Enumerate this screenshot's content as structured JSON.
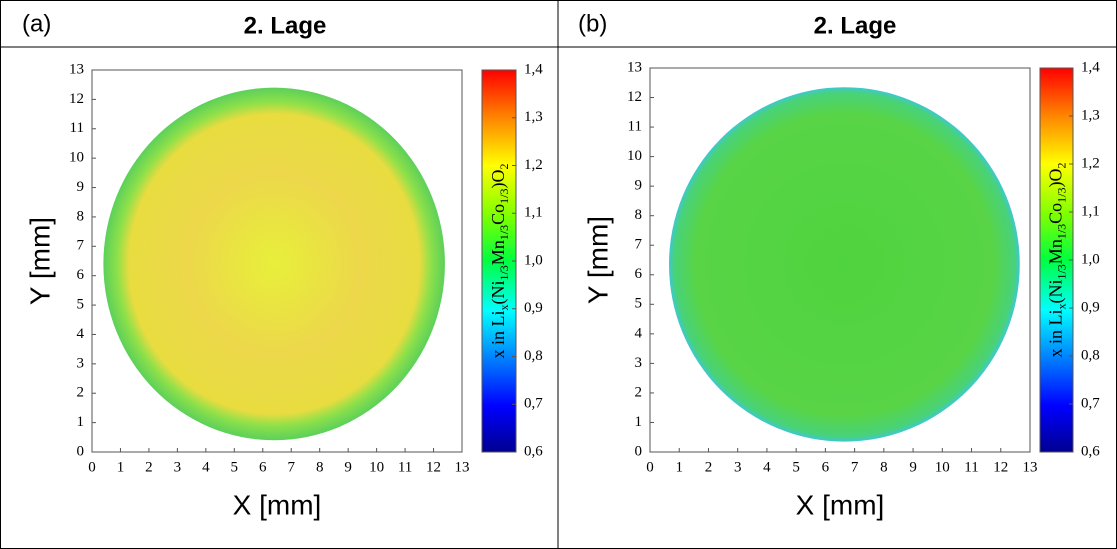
{
  "chart_data": [
    {
      "type": "heatmap",
      "panel_label": "(a)",
      "title": "2. Lage",
      "xlabel": "X [mm]",
      "ylabel": "Y [mm]",
      "xlim": [
        0,
        13
      ],
      "ylim": [
        0,
        13
      ],
      "xticks": [
        0,
        1,
        2,
        3,
        4,
        5,
        6,
        7,
        8,
        9,
        10,
        11,
        12,
        13
      ],
      "yticks": [
        0,
        1,
        2,
        3,
        4,
        5,
        6,
        7,
        8,
        9,
        10,
        11,
        12,
        13
      ],
      "clim": [
        0.6,
        1.4
      ],
      "cticks": [
        {
          "value": 0.6,
          "label": "0,6"
        },
        {
          "value": 0.7,
          "label": "0,7"
        },
        {
          "value": 0.8,
          "label": "0,8"
        },
        {
          "value": 0.9,
          "label": "0,9"
        },
        {
          "value": 1.0,
          "label": "1,0"
        },
        {
          "value": 1.1,
          "label": "1,1"
        },
        {
          "value": 1.2,
          "label": "1,2"
        },
        {
          "value": 1.3,
          "label": "1,3"
        },
        {
          "value": 1.4,
          "label": "1,4"
        }
      ],
      "colorbar_label": [
        "x in Li",
        "x",
        "(Ni",
        "1/3",
        "Mn",
        "1/3",
        "Co",
        "1/3",
        ")O",
        "2"
      ]
    },
    {
      "type": "heatmap",
      "panel_label": "(b)",
      "title": "2. Lage",
      "xlabel": "X [mm]",
      "ylabel": "Y [mm]",
      "xlim": [
        0,
        13
      ],
      "ylim": [
        0,
        13
      ],
      "xticks": [
        0,
        1,
        2,
        3,
        4,
        5,
        6,
        7,
        8,
        9,
        10,
        11,
        12,
        13
      ],
      "yticks": [
        0,
        1,
        2,
        3,
        4,
        5,
        6,
        7,
        8,
        9,
        10,
        11,
        12,
        13
      ],
      "clim": [
        0.6,
        1.4
      ],
      "cticks": [
        {
          "value": 0.6,
          "label": "0,6"
        },
        {
          "value": 0.7,
          "label": "0,7"
        },
        {
          "value": 0.8,
          "label": "0,8"
        },
        {
          "value": 0.9,
          "label": "0,9"
        },
        {
          "value": 1.0,
          "label": "1,0"
        },
        {
          "value": 1.1,
          "label": "1,1"
        },
        {
          "value": 1.2,
          "label": "1,2"
        },
        {
          "value": 1.3,
          "label": "1,3"
        },
        {
          "value": 1.4,
          "label": "1,4"
        }
      ],
      "colorbar_label": [
        "x in Li",
        "x",
        "(Ni",
        "1/3",
        "Mn",
        "1/3",
        "Co",
        "1/3",
        ")O",
        "2"
      ]
    }
  ]
}
